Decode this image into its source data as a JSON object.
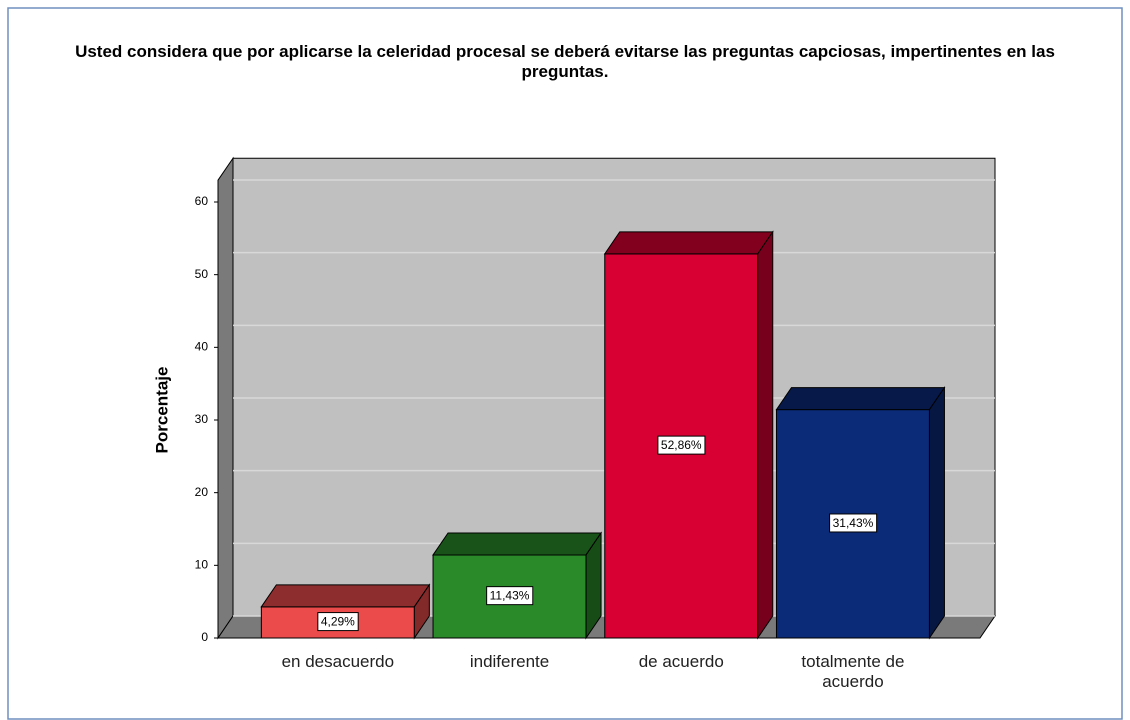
{
  "chart_data": {
    "type": "bar3d",
    "title": "Usted considera que por  aplicarse la  celeridad procesal se  deberá evitarse las  preguntas capciosas, impertinentes en las preguntas.",
    "y_label": "Porcentaje",
    "categories": [
      "en desacuerdo",
      "indiferente",
      "de acuerdo",
      "totalmente de acuerdo"
    ],
    "values": [
      4.29,
      11.43,
      52.86,
      31.43
    ],
    "value_labels": [
      "4,29%",
      "11,43%",
      "52,86%",
      "31,43%"
    ],
    "colors": [
      "#ec4b4b",
      "#2a8a2a",
      "#d80032",
      "#0b2a78"
    ],
    "ylim": [
      0,
      63
    ],
    "yticks": [
      0,
      10,
      20,
      30,
      40,
      50,
      60
    ],
    "grid": true
  }
}
